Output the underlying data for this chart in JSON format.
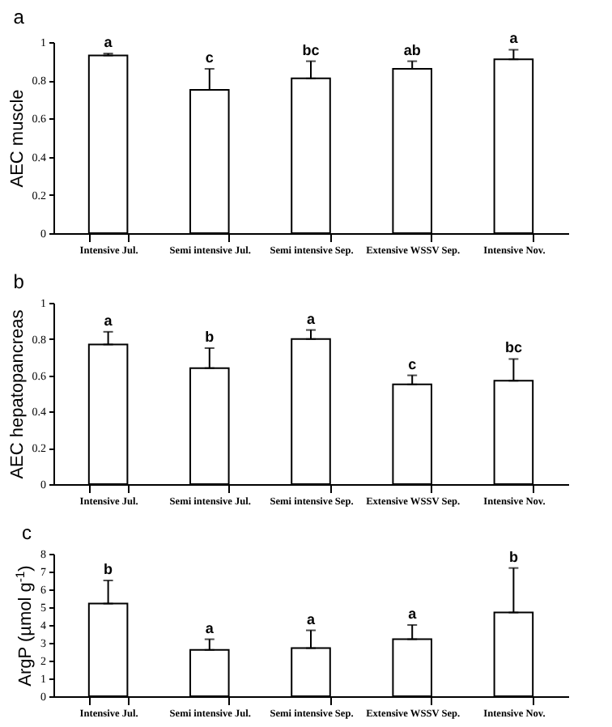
{
  "chart_data": [
    {
      "type": "bar",
      "title": "a",
      "ylabel": "AEC muscle",
      "categories": [
        "Intensive Jul.",
        "Semi intensive Jul.",
        "Semi intensive Sep.",
        "Extensive WSSV Sep.",
        "Intensive Nov."
      ],
      "values": [
        0.93,
        0.75,
        0.81,
        0.86,
        0.91
      ],
      "colors": [
        "#ffffff",
        "#ffffff",
        "#ffffff",
        "#ffffff",
        "#ffffff"
      ],
      "errors": [
        [
          0.93,
          0.94
        ],
        [
          0.75,
          0.86
        ],
        [
          0.81,
          0.9
        ],
        [
          0.86,
          0.9
        ],
        [
          0.91,
          0.96
        ]
      ],
      "ylim": [
        0,
        1
      ],
      "yticks": [
        0,
        0.2,
        0.4,
        0.6,
        0.8,
        1
      ],
      "grid": false,
      "annotations": [
        {
          "text": "a",
          "x": "Intensive Jul.",
          "y": 0.94
        },
        {
          "text": "c",
          "x": "Semi intensive Jul.",
          "y": 0.86
        },
        {
          "text": "bc",
          "x": "Semi intensive Sep.",
          "y": 0.9
        },
        {
          "text": "ab",
          "x": "Extensive WSSV Sep.",
          "y": 0.9
        },
        {
          "text": "a",
          "x": "Intensive Nov.",
          "y": 0.96
        }
      ]
    },
    {
      "type": "bar",
      "title": "b",
      "ylabel": "AEC hepatopancreas",
      "categories": [
        "Intensive Jul.",
        "Semi intensive Jul.",
        "Semi intensive Sep.",
        "Extensive WSSV Sep.",
        "Intensive Nov."
      ],
      "values": [
        0.77,
        0.64,
        0.8,
        0.55,
        0.57
      ],
      "colors": [
        "#ffffff",
        "#ffffff",
        "#ffffff",
        "#ffffff",
        "#ffffff"
      ],
      "errors": [
        [
          0.77,
          0.84
        ],
        [
          0.64,
          0.75
        ],
        [
          0.8,
          0.85
        ],
        [
          0.55,
          0.6
        ],
        [
          0.57,
          0.69
        ]
      ],
      "ylim": [
        0,
        1
      ],
      "yticks": [
        0,
        0.2,
        0.4,
        0.6,
        0.8,
        1
      ],
      "grid": false,
      "annotations": [
        {
          "text": "a",
          "x": "Intensive Jul.",
          "y": 0.84
        },
        {
          "text": "b",
          "x": "Semi intensive Jul.",
          "y": 0.75
        },
        {
          "text": "a",
          "x": "Semi intensive Sep.",
          "y": 0.85
        },
        {
          "text": "c",
          "x": "Extensive WSSV Sep.",
          "y": 0.6
        },
        {
          "text": "bc",
          "x": "Intensive Nov.",
          "y": 0.69
        }
      ]
    },
    {
      "type": "bar",
      "title": "c",
      "ylabel": "ArgP (µmol g$^{-1}$)",
      "categories": [
        "Intensive Jul.",
        "Semi intensive Jul.",
        "Semi intensive Sep.",
        "Extensive WSSV Sep.",
        "Intensive Nov."
      ],
      "values": [
        5.2,
        2.6,
        2.7,
        3.2,
        4.7
      ],
      "colors": [
        "#ffffff",
        "#ffffff",
        "#ffffff",
        "#ffffff",
        "#ffffff"
      ],
      "errors": [
        [
          5.2,
          6.5
        ],
        [
          2.6,
          3.2
        ],
        [
          2.7,
          3.7
        ],
        [
          3.2,
          4.0
        ],
        [
          4.7,
          7.2
        ]
      ],
      "ylim": [
        0,
        8
      ],
      "yticks": [
        0,
        1,
        2,
        3,
        4,
        5,
        6,
        7,
        8
      ],
      "grid": false,
      "annotations": [
        {
          "text": "b",
          "x": "Intensive Jul.",
          "y": 6.5
        },
        {
          "text": "a",
          "x": "Semi intensive Jul.",
          "y": 3.2
        },
        {
          "text": "a",
          "x": "Semi intensive Sep.",
          "y": 3.7
        },
        {
          "text": "a",
          "x": "Extensive WSSV Sep.",
          "y": 4.0
        },
        {
          "text": "b",
          "x": "Intensive Nov.",
          "y": 7.2
        }
      ]
    }
  ]
}
